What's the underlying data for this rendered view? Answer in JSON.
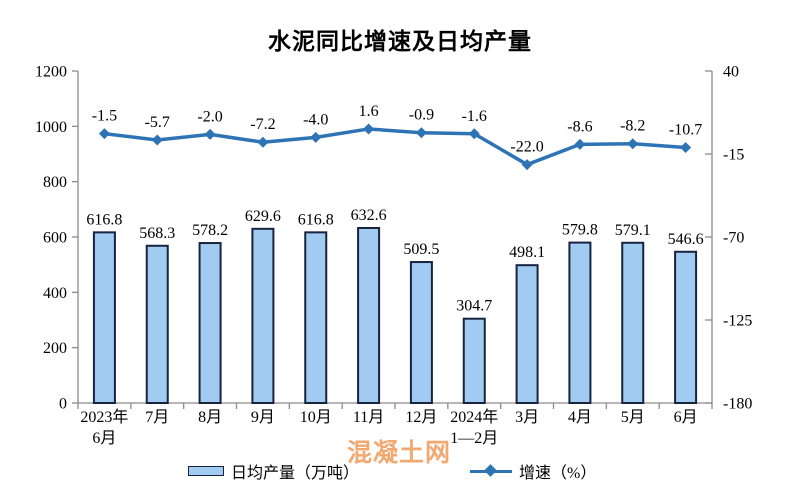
{
  "title": "水泥同比增速及日均产量",
  "watermark": "混凝土网",
  "legend": {
    "bar_label": "日均产量（万吨）",
    "line_label": "增速（%）"
  },
  "colors": {
    "bar_fill": "#A2CBF2",
    "bar_border": "#17233F",
    "line": "#2E74B5",
    "axis": "#8C8C8C",
    "text": "#000000",
    "watermark": "#F09B59"
  },
  "chart_data": {
    "type": "bar+line combo",
    "title": "水泥同比增速及日均产量",
    "categories": [
      "2023年\n6月",
      "7月",
      "8月",
      "9月",
      "10月",
      "11月",
      "12月",
      "2024年\n1—2月",
      "3月",
      "4月",
      "5月",
      "6月"
    ],
    "series": [
      {
        "name": "日均产量（万吨）",
        "type": "bar",
        "axis": "left",
        "values": [
          616.8,
          568.3,
          578.2,
          629.6,
          616.8,
          632.6,
          509.5,
          304.7,
          498.1,
          579.8,
          579.1,
          546.6
        ]
      },
      {
        "name": "增速（%）",
        "type": "line",
        "axis": "right",
        "values": [
          -1.5,
          -5.7,
          -2.0,
          -7.2,
          -4.0,
          1.6,
          -0.9,
          -1.6,
          -22.0,
          -8.6,
          -8.2,
          -10.7
        ]
      }
    ],
    "left_axis": {
      "min": 0,
      "max": 1200,
      "ticks": [
        0,
        200,
        400,
        600,
        800,
        1000,
        1200
      ]
    },
    "right_axis": {
      "min": -180,
      "max": 40,
      "ticks": [
        40,
        -15,
        -70,
        -125,
        -180
      ]
    },
    "grid": false,
    "legend_position": "bottom",
    "data_labels": true
  }
}
